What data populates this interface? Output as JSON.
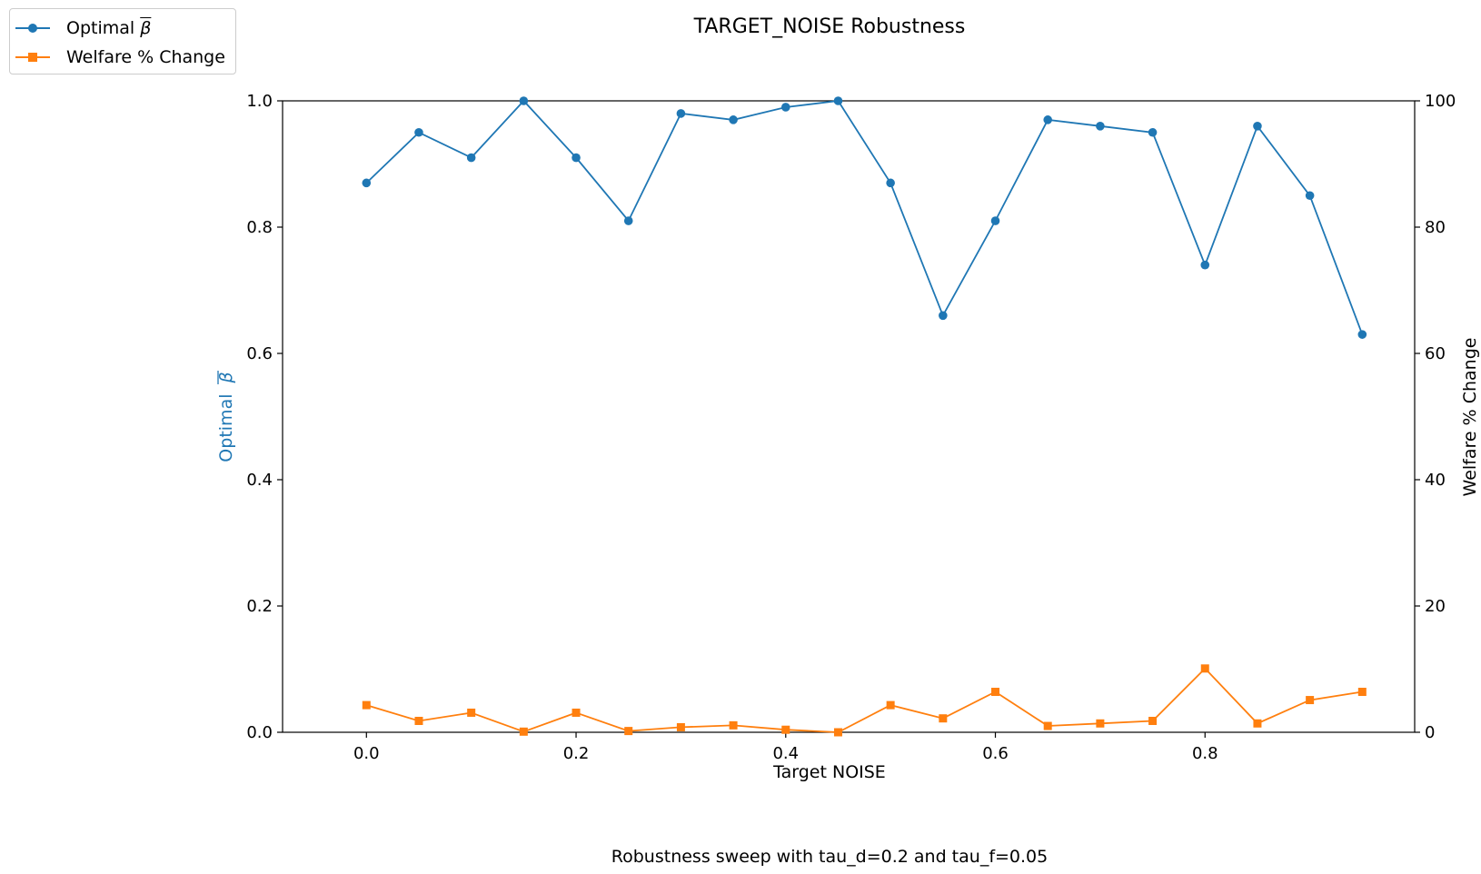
{
  "chart_data": {
    "type": "line",
    "title": "TARGET_NOISE Robustness",
    "caption": "Robustness sweep with tau_d=0.2 and tau_f=0.05",
    "xlabel": "Target NOISE",
    "ylabel_left_prefix": "Optimal",
    "ylabel_left_symbol": "β",
    "ylabel_right": "Welfare % Change",
    "xlim": [
      -0.08,
      1.0
    ],
    "ylim_left": [
      0,
      1.0
    ],
    "ylim_right": [
      0,
      100
    ],
    "x_ticks": [
      "0.0",
      "0.2",
      "0.4",
      "0.6",
      "0.8"
    ],
    "y_left_ticks": [
      "0.0",
      "0.2",
      "0.4",
      "0.6",
      "0.8",
      "1.0"
    ],
    "y_right_ticks": [
      "0",
      "20",
      "40",
      "60",
      "80",
      "100"
    ],
    "grid": false,
    "legend_placement": "top-left",
    "x": [
      0.0,
      0.05,
      0.1,
      0.15,
      0.2,
      0.25,
      0.3,
      0.35,
      0.4,
      0.45,
      0.5,
      0.55,
      0.6,
      0.65,
      0.7,
      0.75,
      0.8,
      0.85,
      0.9,
      0.95
    ],
    "series": [
      {
        "name_prefix": "Optimal",
        "name_symbol": "β",
        "axis": "left",
        "marker": "circle",
        "color": "#1f77b4",
        "values": [
          0.87,
          0.95,
          0.91,
          1.0,
          0.91,
          0.81,
          0.98,
          0.97,
          0.99,
          1.0,
          0.87,
          0.66,
          0.81,
          0.97,
          0.96,
          0.95,
          0.74,
          0.96,
          0.85,
          0.63
        ]
      },
      {
        "name": "Welfare % Change",
        "axis": "right",
        "marker": "square",
        "color": "#ff7f0e",
        "values": [
          4.3,
          1.8,
          3.1,
          0.1,
          3.1,
          0.2,
          0.8,
          1.1,
          0.4,
          0.0,
          4.3,
          2.2,
          6.4,
          1.0,
          1.4,
          1.8,
          10.1,
          1.4,
          5.1,
          6.4
        ]
      }
    ]
  }
}
